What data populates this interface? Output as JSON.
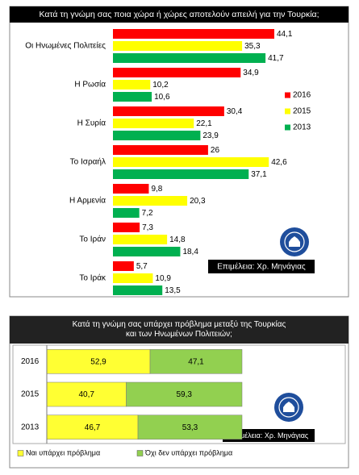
{
  "chart_data": [
    {
      "type": "barh",
      "stacked": false,
      "title": "Κατά τη γνώμη σας ποια χώρα ή χώρες αποτελούν απειλή για την Τουρκία;",
      "categories": [
        "Οι Ηνωμένες Πολιτείες",
        "Η Ρωσία",
        "Η Συρία",
        "Το Ισραήλ",
        "Η Αρμενία",
        "Το Ιράν",
        "Το Ιράκ"
      ],
      "series": [
        {
          "name": "2016",
          "color": "#ff0000",
          "values": [
            44.1,
            34.9,
            30.4,
            26,
            9.8,
            7.3,
            5.7
          ],
          "value_labels": [
            "44,1",
            "34,9",
            "30,4",
            "26",
            "9,8",
            "7,3",
            "5,7"
          ]
        },
        {
          "name": "2015",
          "color": "#ffff00",
          "values": [
            35.3,
            10.2,
            22.1,
            42.6,
            20.3,
            14.8,
            10.9
          ],
          "value_labels": [
            "35,3",
            "10,2",
            "22,1",
            "42,6",
            "20,3",
            "14,8",
            "10,9"
          ]
        },
        {
          "name": "2013",
          "color": "#00b050",
          "values": [
            41.7,
            10.6,
            23.9,
            37.1,
            7.2,
            18.4,
            13.5
          ],
          "value_labels": [
            "41,7",
            "10,6",
            "23,9",
            "37,1",
            "7,2",
            "18,4",
            "13,5"
          ]
        }
      ],
      "credit": "Επιμέλεια: Χρ. Μηνάγιας"
    },
    {
      "type": "barh",
      "stacked": true,
      "title": "Κατά τη γνώμη σας υπάρχει πρόβλημα μεταξύ της Τουρκίας και των Ηνωμένων Πολιτειών;",
      "categories": [
        "2016",
        "2015",
        "2013"
      ],
      "series": [
        {
          "name": "Ναι υπάρχει πρόβλημα",
          "color": "#ffff33",
          "values": [
            52.9,
            40.7,
            46.7
          ],
          "value_labels": [
            "52,9",
            "40,7",
            "46,7"
          ]
        },
        {
          "name": "Όχι δεν υπάρχει πρόβλημα",
          "color": "#92d050",
          "values": [
            47.1,
            59.3,
            53.3
          ],
          "value_labels": [
            "47,1",
            "59,3",
            "53,3"
          ]
        }
      ],
      "credit": "Επιμέλεια: Χρ. Μηνάγιας"
    }
  ]
}
